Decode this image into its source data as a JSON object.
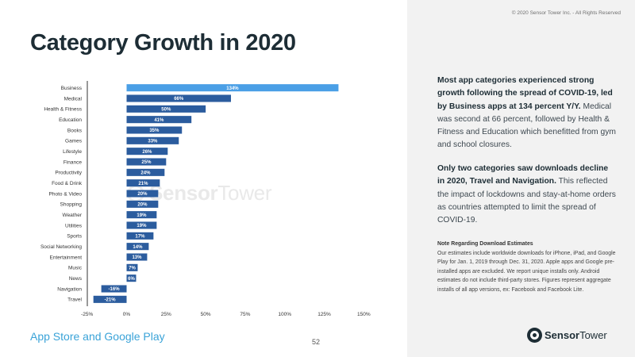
{
  "page": {
    "copyright": "© 2020 Sensor Tower Inc. - All Rights Reserved",
    "title": "Category Growth in 2020",
    "subtitle": "App Store and Google Play",
    "page_number": "52",
    "watermark_bold": "Sensor",
    "watermark_light": "Tower",
    "logo_bold": "Sensor",
    "logo_light": "Tower"
  },
  "commentary": {
    "p1_bold": "Most app categories experienced strong growth following the spread of COVID-19, led by Business apps at 134 percent Y/Y.",
    "p1_rest": " Medical was second at 66 percent, followed by Health & Fitness and Education which benefitted from gym and school closures.",
    "p2_bold": "Only two categories saw downloads decline in 2020, Travel and Navigation.",
    "p2_rest": " This reflected the impact of lockdowns and stay-at-home orders as countries attempted to limit the spread of COVID-19.",
    "note_title": "Note Regarding Download Estimates",
    "note_body": "Our estimates include worldwide downloads for iPhone, iPad, and Google Play for Jan. 1, 2019 through Dec. 31, 2020. Apple apps and Google pre-installed apps are excluded. We report unique installs only. Android estimates do not include third-party stores. Figures represent aggregate installs of all app versions, ex: Facebook and Facebook Lite."
  },
  "chart_data": {
    "type": "bar",
    "orientation": "horizontal",
    "title": "Category Growth in 2020",
    "xlabel": "",
    "ylabel": "",
    "xlim": [
      -25,
      150
    ],
    "xticks": [
      -25,
      0,
      25,
      50,
      75,
      100,
      125,
      150
    ],
    "tick_suffix": "%",
    "grid": false,
    "highlight_color": "#4a9fe6",
    "bar_color": "#2b5c9e",
    "categories": [
      "Business",
      "Medical",
      "Health & Fitness",
      "Education",
      "Books",
      "Games",
      "Lifestyle",
      "Finance",
      "Productivity",
      "Food & Drink",
      "Photo & Video",
      "Shopping",
      "Weather",
      "Utilities",
      "Sports",
      "Social Networking",
      "Entertainment",
      "Music",
      "News",
      "Navigation",
      "Travel"
    ],
    "values": [
      134,
      66,
      50,
      41,
      35,
      33,
      26,
      25,
      24,
      21,
      20,
      20,
      19,
      19,
      17,
      14,
      13,
      7,
      6,
      -16,
      -21
    ],
    "highlight_index": 0
  }
}
